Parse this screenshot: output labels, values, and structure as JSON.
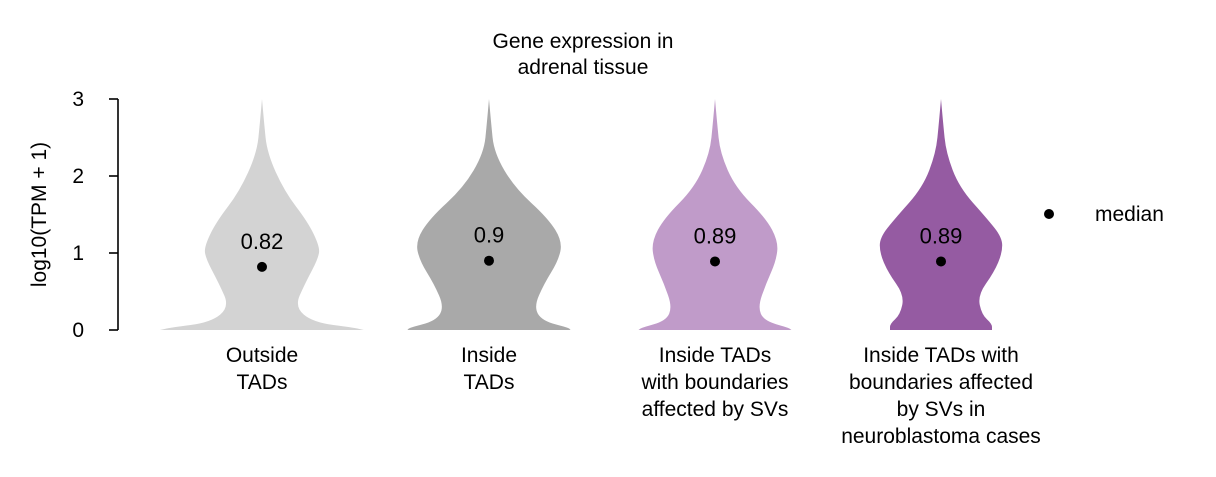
{
  "chart_data": {
    "type": "violin",
    "title": "Gene expression in\nadrenal tissue",
    "ylabel": "log10(TPM + 1)",
    "ylim": [
      0,
      3
    ],
    "yticks": [
      0,
      1,
      2,
      3
    ],
    "categories": [
      "Outside\nTADs",
      "Inside\nTADs",
      "Inside TADs\nwith boundaries\naffected by SVs",
      "Inside TADs with\nboundaries affected\nby SVs in\nneuroblastoma cases"
    ],
    "medians": [
      0.82,
      0.9,
      0.89,
      0.89
    ],
    "median_labels": [
      "0.82",
      "0.9",
      "0.89",
      "0.89"
    ],
    "colors": [
      "#d3d3d3",
      "#a9a9a9",
      "#c09bc9",
      "#955ba2"
    ],
    "density_profiles": [
      [
        [
          0,
          1.0
        ],
        [
          0.03,
          0.9
        ],
        [
          0.1,
          0.5
        ],
        [
          0.3,
          0.32
        ],
        [
          0.6,
          0.42
        ],
        [
          0.95,
          0.56
        ],
        [
          1.1,
          0.56
        ],
        [
          1.4,
          0.45
        ],
        [
          1.8,
          0.22
        ],
        [
          2.3,
          0.05
        ],
        [
          2.7,
          0.02
        ],
        [
          3.0,
          0.0
        ]
      ],
      [
        [
          0,
          0.8
        ],
        [
          0.03,
          0.78
        ],
        [
          0.12,
          0.52
        ],
        [
          0.3,
          0.44
        ],
        [
          0.6,
          0.54
        ],
        [
          0.9,
          0.68
        ],
        [
          1.15,
          0.72
        ],
        [
          1.45,
          0.58
        ],
        [
          1.85,
          0.25
        ],
        [
          2.3,
          0.05
        ],
        [
          2.7,
          0.02
        ],
        [
          3.0,
          0.0
        ]
      ],
      [
        [
          0,
          0.75
        ],
        [
          0.03,
          0.72
        ],
        [
          0.12,
          0.48
        ],
        [
          0.3,
          0.42
        ],
        [
          0.6,
          0.5
        ],
        [
          0.9,
          0.6
        ],
        [
          1.15,
          0.62
        ],
        [
          1.45,
          0.5
        ],
        [
          1.85,
          0.2
        ],
        [
          2.3,
          0.05
        ],
        [
          2.7,
          0.02
        ],
        [
          3.0,
          0.0
        ]
      ],
      [
        [
          0,
          0.5
        ],
        [
          0.08,
          0.5
        ],
        [
          0.2,
          0.4
        ],
        [
          0.45,
          0.36
        ],
        [
          0.75,
          0.52
        ],
        [
          1.0,
          0.6
        ],
        [
          1.2,
          0.6
        ],
        [
          1.45,
          0.45
        ],
        [
          1.85,
          0.18
        ],
        [
          2.3,
          0.05
        ],
        [
          2.7,
          0.02
        ],
        [
          3.0,
          0.0
        ]
      ]
    ],
    "legend": {
      "label": "median",
      "position": "right"
    },
    "grid": false
  }
}
